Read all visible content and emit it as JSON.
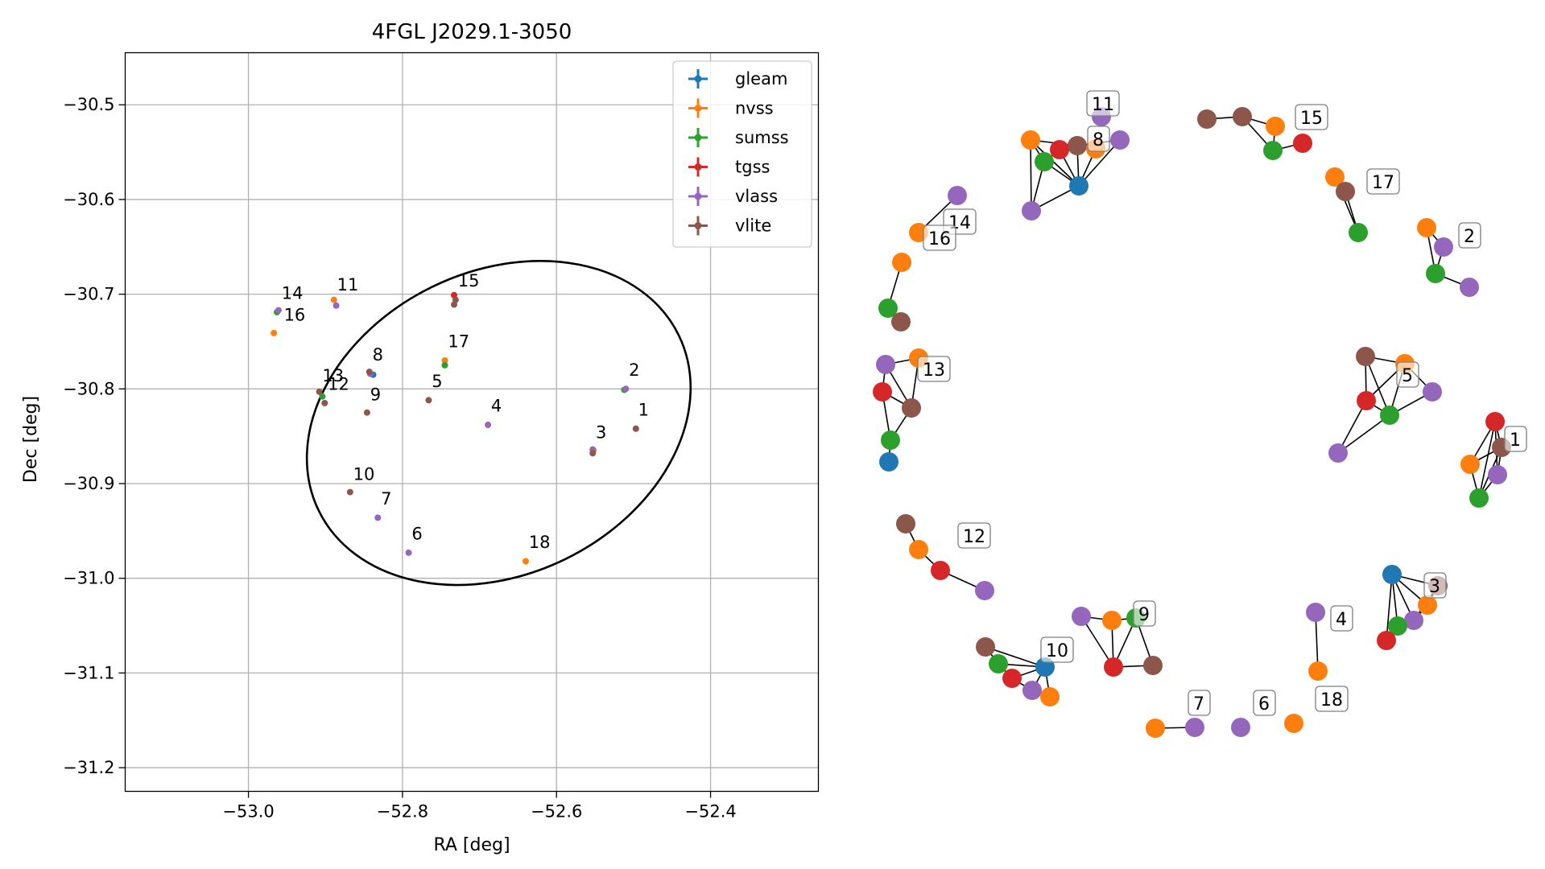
{
  "chart_data": [
    {
      "type": "scatter",
      "title": "4FGL J2029.1-3050",
      "xlabel": "RA [deg]",
      "ylabel": "Dec [deg]",
      "xlim": [
        -53.16,
        -52.26
      ],
      "ylim": [
        -31.225,
        -30.445
      ],
      "xticks": [
        -53.0,
        -52.8,
        -52.6,
        -52.4
      ],
      "xtick_labels": [
        "−53.0",
        "−52.8",
        "−52.6",
        "−52.4"
      ],
      "yticks": [
        -30.5,
        -30.6,
        -30.7,
        -30.8,
        -30.9,
        -31.0,
        -31.1,
        -31.2
      ],
      "ytick_labels": [
        "−30.5",
        "−30.6",
        "−30.7",
        "−30.8",
        "−30.9",
        "−31.0",
        "−31.1",
        "−31.2"
      ],
      "grid": true,
      "legend_position": "top-right",
      "legend_marker": "errorbar",
      "series": [
        {
          "name": "gleam",
          "color": "#1f77b4",
          "points": [
            [
              -52.838,
              -30.785
            ]
          ]
        },
        {
          "name": "nvss",
          "color": "#ff7f0e",
          "points": [
            [
              -52.889,
              -30.706
            ],
            [
              -52.967,
              -30.741
            ],
            [
              -52.745,
              -30.77
            ],
            [
              -52.64,
              -30.982
            ],
            [
              -52.552,
              -30.865
            ]
          ]
        },
        {
          "name": "sumss",
          "color": "#2ca02c",
          "points": [
            [
              -52.963,
              -30.719
            ],
            [
              -52.904,
              -30.808
            ],
            [
              -52.745,
              -30.775
            ],
            [
              -52.512,
              -30.801
            ]
          ]
        },
        {
          "name": "tgss",
          "color": "#d62728",
          "points": [
            [
              -52.733,
              -30.701
            ]
          ]
        },
        {
          "name": "vlass",
          "color": "#9467bd",
          "points": [
            [
              -52.961,
              -30.717
            ],
            [
              -52.886,
              -30.712
            ],
            [
              -52.842,
              -30.784
            ],
            [
              -52.689,
              -30.838
            ],
            [
              -52.832,
              -30.936
            ],
            [
              -52.792,
              -30.973
            ],
            [
              -52.51,
              -30.8
            ],
            [
              -52.553,
              -30.864
            ]
          ]
        },
        {
          "name": "vlite",
          "color": "#8c564b",
          "points": [
            [
              -52.731,
              -30.706
            ],
            [
              -52.733,
              -30.711
            ],
            [
              -52.843,
              -30.782
            ],
            [
              -52.908,
              -30.803
            ],
            [
              -52.901,
              -30.815
            ],
            [
              -52.846,
              -30.825
            ],
            [
              -52.766,
              -30.812
            ],
            [
              -52.868,
              -30.909
            ],
            [
              -52.497,
              -30.842
            ],
            [
              -52.553,
              -30.868
            ]
          ]
        }
      ],
      "labels": [
        {
          "text": "1",
          "x": -52.494,
          "y": -30.828
        },
        {
          "text": "2",
          "x": -52.506,
          "y": -30.786
        },
        {
          "text": "3",
          "x": -52.549,
          "y": -30.852
        },
        {
          "text": "4",
          "x": -52.685,
          "y": -30.824
        },
        {
          "text": "5",
          "x": -52.762,
          "y": -30.798
        },
        {
          "text": "6",
          "x": -52.788,
          "y": -30.959
        },
        {
          "text": "7",
          "x": -52.828,
          "y": -30.922
        },
        {
          "text": "8",
          "x": -52.839,
          "y": -30.77
        },
        {
          "text": "9",
          "x": -52.842,
          "y": -30.812
        },
        {
          "text": "10",
          "x": -52.864,
          "y": -30.896
        },
        {
          "text": "11",
          "x": -52.885,
          "y": -30.696
        },
        {
          "text": "12",
          "x": -52.897,
          "y": -30.801
        },
        {
          "text": "13",
          "x": -52.904,
          "y": -30.792
        },
        {
          "text": "14",
          "x": -52.957,
          "y": -30.705
        },
        {
          "text": "15",
          "x": -52.728,
          "y": -30.692
        },
        {
          "text": "16",
          "x": -52.954,
          "y": -30.728
        },
        {
          "text": "17",
          "x": -52.741,
          "y": -30.756
        },
        {
          "text": "18",
          "x": -52.636,
          "y": -30.968
        }
      ],
      "ellipse": {
        "center": [
          -52.675,
          -30.836
        ],
        "ra_semi_axis": 0.26,
        "dec_semi_axis": 0.16,
        "angle_deg": -26
      }
    },
    {
      "type": "network",
      "colors": {
        "gleam": "#1f77b4",
        "nvss": "#ff7f0e",
        "sumss": "#2ca02c",
        "tgss": "#d62728",
        "vlass": "#9467bd",
        "vlite": "#8c564b"
      },
      "node_labels": [
        "1",
        "2",
        "3",
        "4",
        "5",
        "6",
        "7",
        "8",
        "9",
        "10",
        "11",
        "12",
        "13",
        "14",
        "15",
        "16",
        "17",
        "18"
      ]
    }
  ]
}
